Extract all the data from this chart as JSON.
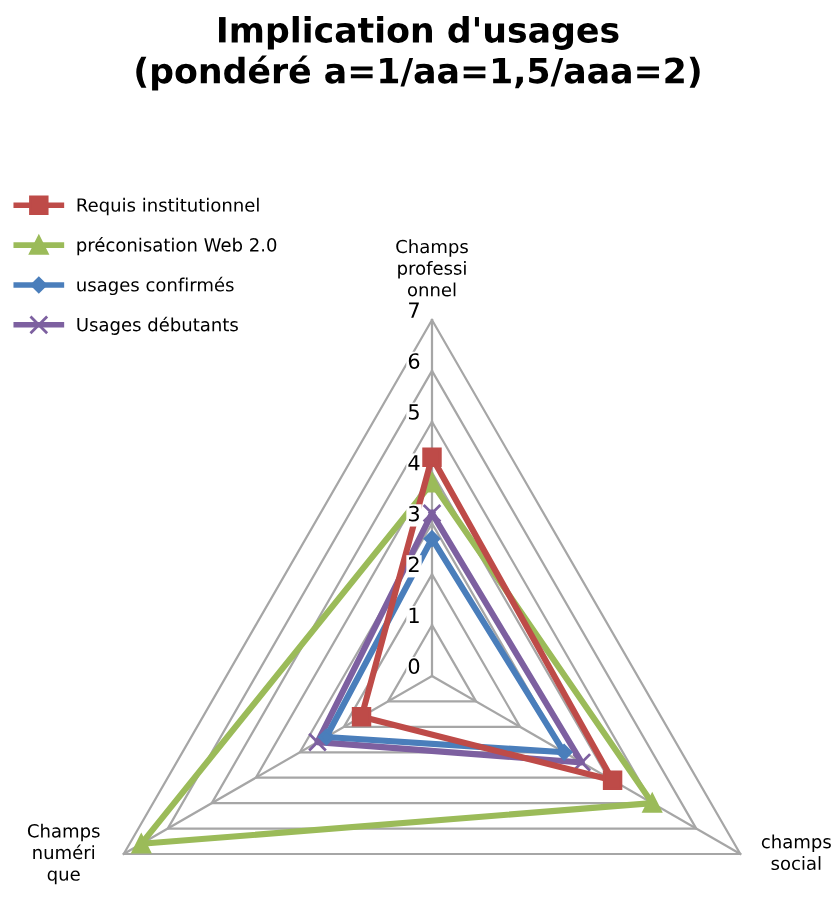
{
  "chart_data": {
    "type": "radar",
    "title": "Implication d'usages\n(pondéré a=1/aa=1,5/aaa=2)",
    "categories": [
      "Champs\nprofessi\nonnel",
      "champs\nsocial",
      "Champs\nnuméri\nque"
    ],
    "ylim": [
      0,
      7
    ],
    "yticks": [
      0,
      1,
      2,
      3,
      4,
      5,
      6,
      7
    ],
    "grid": true,
    "legend": "top left",
    "series": [
      {
        "name": "Requis institutionnel",
        "color": "#be4b48",
        "marker": "square",
        "values": [
          4.3,
          4.1,
          1.6
        ]
      },
      {
        "name": "préconisation Web 2.0",
        "color": "#9bbb59",
        "marker": "triangle",
        "values": [
          3.8,
          5.0,
          6.6
        ]
      },
      {
        "name": "usages confirmés",
        "color": "#4a7ebb",
        "marker": "diamond",
        "values": [
          2.7,
          3.0,
          2.4
        ]
      },
      {
        "name": "Usages débutants",
        "color": "#7d60a0",
        "marker": "cross",
        "values": [
          3.2,
          3.4,
          2.6
        ]
      }
    ]
  }
}
